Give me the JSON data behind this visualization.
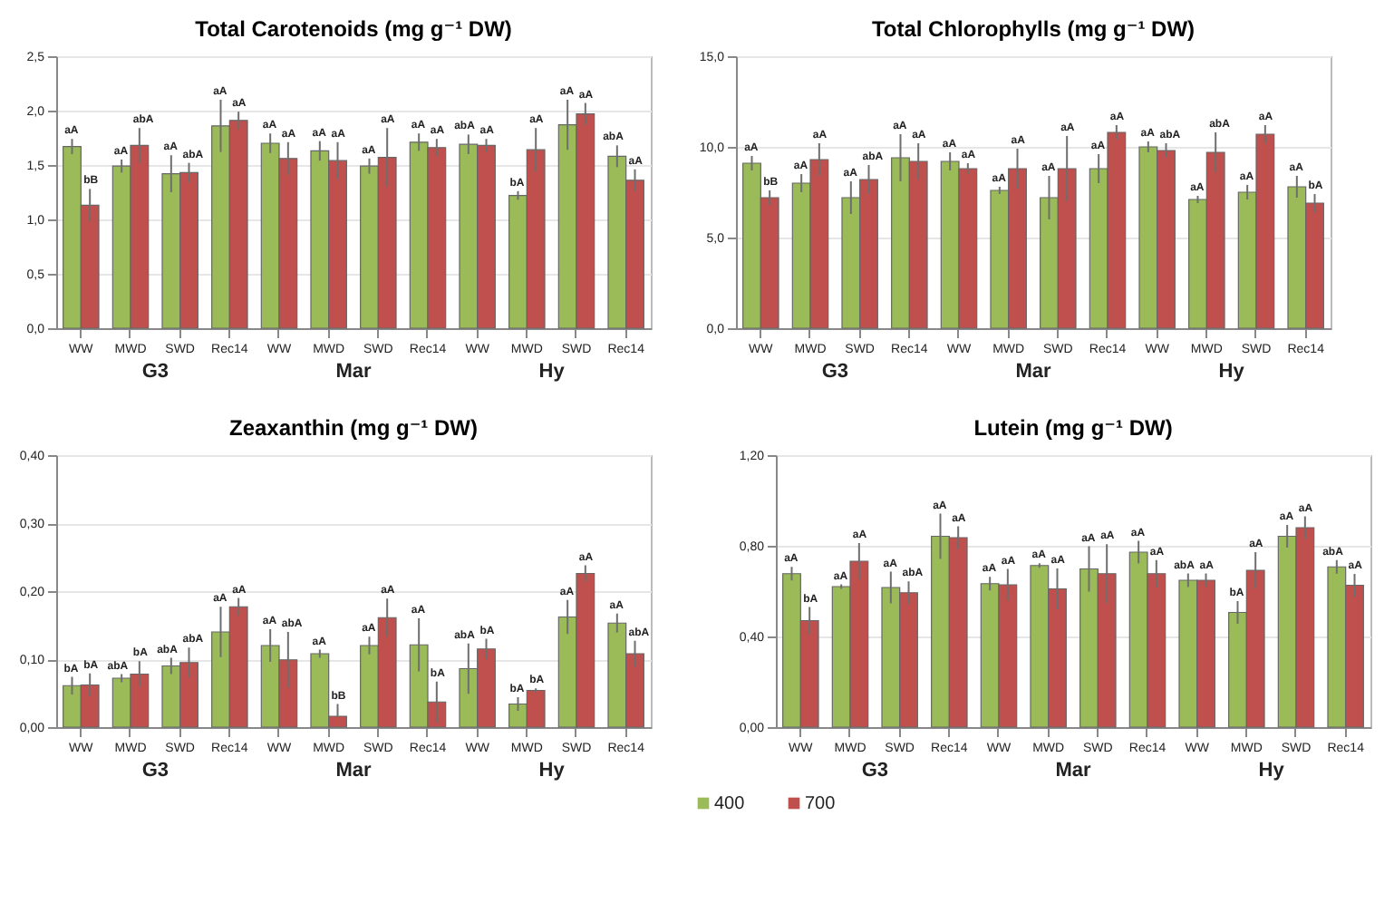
{
  "chart_data": [
    {
      "type": "bar",
      "title": "Total Carotenoids (mg g⁻¹ DW)",
      "categories": [
        "WW",
        "MWD",
        "SWD",
        "Rec14",
        "WW",
        "MWD",
        "SWD",
        "Rec14",
        "WW",
        "MWD",
        "SWD",
        "Rec14"
      ],
      "annotations": [
        "G3",
        "Mar",
        "Hy"
      ],
      "ylim": [
        0,
        2.5
      ],
      "yticks": [
        {
          "value": 0,
          "label": "0,0"
        },
        {
          "value": 0.5,
          "label": "0,5"
        },
        {
          "value": 1,
          "label": "1,0"
        },
        {
          "value": 1.5,
          "label": "1,5"
        },
        {
          "value": 2,
          "label": "2,0"
        },
        {
          "value": 2.5,
          "label": "2,5"
        }
      ],
      "grid": "y",
      "series": [
        {
          "color": "#9bbb59",
          "values": [
            1.67,
            1.49,
            1.42,
            1.86,
            1.7,
            1.63,
            1.49,
            1.71,
            1.69,
            1.22,
            1.87,
            1.58
          ],
          "errors": [
            0.07,
            0.06,
            0.17,
            0.24,
            0.09,
            0.09,
            0.07,
            0.08,
            0.09,
            0.04,
            0.23,
            0.1
          ],
          "value_labels": [
            "aA",
            "aA",
            "aA",
            "aA",
            "aA",
            "aA",
            "aA",
            "aA",
            "abA",
            "bA",
            "aA",
            "abA"
          ]
        },
        {
          "color": "#c0504d",
          "values": [
            1.13,
            1.68,
            1.43,
            1.91,
            1.56,
            1.54,
            1.57,
            1.66,
            1.68,
            1.64,
            1.97,
            1.36
          ],
          "errors": [
            0.15,
            0.16,
            0.09,
            0.08,
            0.15,
            0.17,
            0.27,
            0.08,
            0.06,
            0.2,
            0.1,
            0.1
          ],
          "value_labels": [
            "bB",
            "abA",
            "abA",
            "aA",
            "aA",
            "aA",
            "aA",
            "aA",
            "aA",
            "aA",
            "aA",
            "aA"
          ]
        }
      ]
    },
    {
      "type": "bar",
      "title": "Total Chlorophylls  (mg g⁻¹ DW)",
      "categories": [
        "WW",
        "MWD",
        "SWD",
        "Rec14",
        "WW",
        "MWD",
        "SWD",
        "Rec14",
        "WW",
        "MWD",
        "SWD",
        "Rec14"
      ],
      "annotations": [
        "G3",
        "Mar",
        "Hy"
      ],
      "ylim": [
        0,
        15
      ],
      "yticks": [
        {
          "value": 0,
          "label": "0,0"
        },
        {
          "value": 5,
          "label": "5,0"
        },
        {
          "value": 10,
          "label": "10,0"
        },
        {
          "value": 15,
          "label": "15,0"
        }
      ],
      "grid": "y",
      "series": [
        {
          "color": "#9bbb59",
          "values": [
            9.1,
            8.0,
            7.2,
            9.4,
            9.2,
            7.6,
            7.2,
            8.8,
            10.0,
            7.1,
            7.5,
            7.8
          ],
          "errors": [
            0.4,
            0.5,
            0.9,
            1.3,
            0.5,
            0.2,
            1.2,
            0.8,
            0.3,
            0.2,
            0.4,
            0.6
          ],
          "value_labels": [
            "aA",
            "aA",
            "aA",
            "aA",
            "aA",
            "aA",
            "aA",
            "aA",
            "aA",
            "aA",
            "aA",
            "aA"
          ]
        },
        {
          "color": "#c0504d",
          "values": [
            7.2,
            9.3,
            8.2,
            9.2,
            8.8,
            8.8,
            8.8,
            10.8,
            9.8,
            9.7,
            10.7,
            6.9
          ],
          "errors": [
            0.4,
            0.9,
            0.8,
            1.0,
            0.3,
            1.1,
            1.8,
            0.4,
            0.4,
            1.1,
            0.5,
            0.5
          ],
          "value_labels": [
            "bB",
            "aA",
            "abA",
            "aA",
            "aA",
            "aA",
            "aA",
            "aA",
            "abA",
            "abA",
            "aA",
            "bA"
          ]
        }
      ]
    },
    {
      "type": "bar",
      "title": "Zeaxanthin (mg g⁻¹ DW)",
      "categories": [
        "WW",
        "MWD",
        "SWD",
        "Rec14",
        "WW",
        "MWD",
        "SWD",
        "Rec14",
        "WW",
        "MWD",
        "SWD",
        "Rec14"
      ],
      "annotations": [
        "G3",
        "Mar",
        "Hy"
      ],
      "ylim": [
        0,
        0.4
      ],
      "yticks": [
        {
          "value": 0,
          "label": "0,00"
        },
        {
          "value": 0.1,
          "label": "0,10"
        },
        {
          "value": 0.2,
          "label": "0,20"
        },
        {
          "value": 0.3,
          "label": "0,30"
        },
        {
          "value": 0.4,
          "label": "0,40"
        }
      ],
      "grid": "y",
      "series": [
        {
          "color": "#9bbb59",
          "values": [
            0.061,
            0.072,
            0.09,
            0.14,
            0.12,
            0.108,
            0.12,
            0.121,
            0.086,
            0.034,
            0.162,
            0.153
          ],
          "errors": [
            0.013,
            0.006,
            0.012,
            0.037,
            0.024,
            0.006,
            0.013,
            0.039,
            0.037,
            0.01,
            0.025,
            0.014
          ],
          "value_labels": [
            "bA",
            "abA",
            "abA",
            "aA",
            "aA",
            "aA",
            "aA",
            "aA",
            "abA",
            "bA",
            "aA",
            "aA"
          ]
        },
        {
          "color": "#c0504d",
          "values": [
            0.062,
            0.078,
            0.095,
            0.177,
            0.099,
            0.016,
            0.161,
            0.037,
            0.115,
            0.054,
            0.226,
            0.108
          ],
          "errors": [
            0.017,
            0.019,
            0.022,
            0.013,
            0.041,
            [
              0.016,
              0.034
            ],
            0.028,
            0.03,
            0.015,
            0.003,
            0.012,
            0.019
          ],
          "value_labels": [
            "bA",
            "bA",
            "abA",
            "aA",
            "abA",
            "bB",
            "aA",
            "bA",
            "bA",
            "bA",
            "aA",
            "abA"
          ]
        }
      ]
    },
    {
      "type": "bar",
      "title": "Lutein (mg g⁻¹ DW)",
      "categories": [
        "WW",
        "MWD",
        "SWD",
        "Rec14",
        "WW",
        "MWD",
        "SWD",
        "Rec14",
        "WW",
        "MWD",
        "SWD",
        "Rec14"
      ],
      "annotations": [
        "G3",
        "Mar",
        "Hy"
      ],
      "ylim": [
        0,
        1.2
      ],
      "yticks": [
        {
          "value": 0,
          "label": "0,00"
        },
        {
          "value": 0.4,
          "label": "0,40"
        },
        {
          "value": 0.8,
          "label": "0,80"
        },
        {
          "value": 1.2,
          "label": "1,20"
        }
      ],
      "grid": "y",
      "legend": "bottom",
      "series": [
        {
          "name": "400",
          "color": "#9bbb59",
          "values": [
            0.677,
            0.62,
            0.616,
            0.842,
            0.633,
            0.713,
            0.698,
            0.772,
            0.648,
            0.506,
            0.842,
            0.707
          ],
          "errors": [
            0.03,
            0.01,
            0.07,
            0.1,
            0.03,
            0.01,
            0.1,
            0.05,
            0.03,
            0.05,
            0.05,
            0.03
          ],
          "value_labels": [
            "aA",
            "aA",
            "aA",
            "aA",
            "aA",
            "aA",
            "aA",
            "aA",
            "abA",
            "bA",
            "aA",
            "abA"
          ]
        },
        {
          "name": "700",
          "color": "#c0504d",
          "values": [
            0.47,
            0.732,
            0.593,
            0.836,
            0.628,
            0.61,
            0.677,
            0.677,
            0.648,
            0.692,
            0.88,
            0.626
          ],
          "errors": [
            0.06,
            0.08,
            0.05,
            0.05,
            0.07,
            0.09,
            0.13,
            0.06,
            0.03,
            0.08,
            0.05,
            0.05
          ],
          "value_labels": [
            "bA",
            "aA",
            "abA",
            "aA",
            "aA",
            "aA",
            "aA",
            "aA",
            "aA",
            "aA",
            "aA",
            "aA"
          ]
        }
      ]
    }
  ]
}
